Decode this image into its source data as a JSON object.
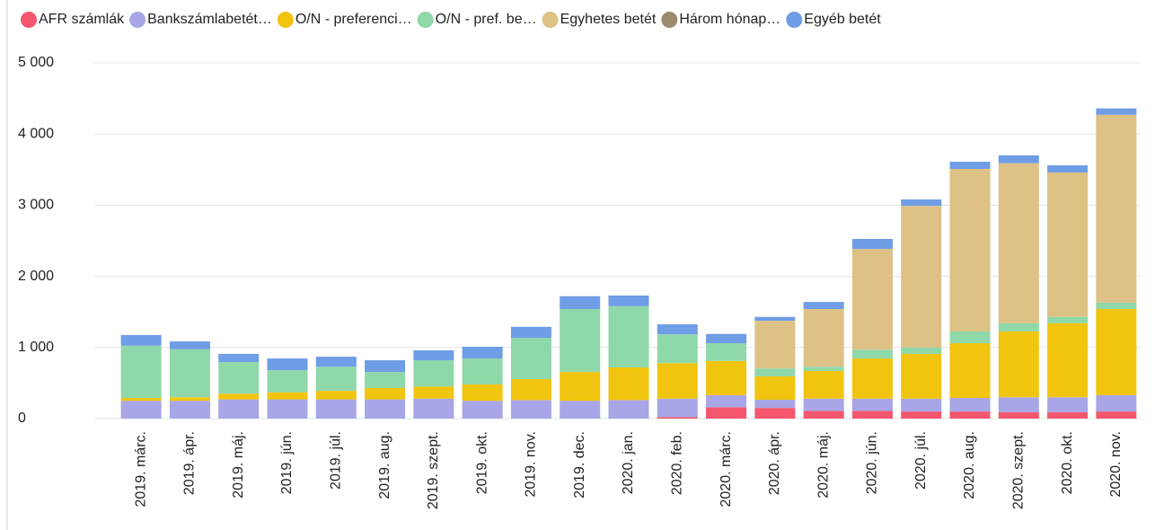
{
  "chart_data": {
    "type": "stacked_bar",
    "categories": [
      "2019. márc.",
      "2019. ápr.",
      "2019. máj.",
      "2019. jún.",
      "2019. júl.",
      "2019. aug.",
      "2019. szept.",
      "2019. okt.",
      "2019. nov.",
      "2019. dec.",
      "2020. jan.",
      "2020. feb.",
      "2020. márc.",
      "2020. ápr.",
      "2020. máj.",
      "2020. jún.",
      "2020. júl.",
      "2020. aug.",
      "2020. szept.",
      "2020. okt.",
      "2020. nov."
    ],
    "series": [
      {
        "name": "AFR számlák",
        "color": "#f4566e",
        "values": [
          0,
          0,
          0,
          0,
          0,
          0,
          0,
          0,
          0,
          0,
          0,
          20,
          160,
          150,
          110,
          110,
          100,
          100,
          90,
          90,
          100
        ]
      },
      {
        "name": "Bankszámlabetét…",
        "color": "#a8a6e6",
        "values": [
          250,
          250,
          270,
          270,
          270,
          270,
          280,
          250,
          260,
          250,
          260,
          260,
          170,
          115,
          170,
          170,
          180,
          190,
          210,
          210,
          230
        ]
      },
      {
        "name": "O/N - preferenci…",
        "color": "#f1c40f",
        "values": [
          40,
          50,
          80,
          100,
          120,
          160,
          170,
          230,
          295,
          405,
          460,
          500,
          480,
          330,
          390,
          565,
          630,
          770,
          925,
          1040,
          1210
        ]
      },
      {
        "name": "O/N - pref. be…",
        "color": "#8fd8a9",
        "values": [
          735,
          675,
          445,
          310,
          340,
          225,
          370,
          365,
          580,
          885,
          860,
          405,
          250,
          110,
          60,
          125,
          90,
          165,
          115,
          90,
          90
        ]
      },
      {
        "name": "Egyhetes betét",
        "color": "#ddc185",
        "values": [
          0,
          0,
          0,
          0,
          0,
          0,
          0,
          0,
          0,
          0,
          0,
          0,
          0,
          670,
          810,
          1415,
          1990,
          2285,
          2250,
          2030,
          2640
        ]
      },
      {
        "name": "Három hónap…",
        "color": "#9c8b6e",
        "values": [
          0,
          0,
          0,
          0,
          0,
          0,
          0,
          0,
          0,
          0,
          0,
          0,
          0,
          0,
          0,
          0,
          0,
          0,
          0,
          0,
          0
        ]
      },
      {
        "name": "Egyéb betét",
        "color": "#6f9de6",
        "values": [
          150,
          110,
          115,
          165,
          140,
          165,
          140,
          165,
          155,
          180,
          150,
          140,
          130,
          55,
          100,
          140,
          90,
          100,
          110,
          100,
          90
        ]
      }
    ],
    "ylim": [
      0,
      5000
    ],
    "yticks": [
      {
        "value": 0,
        "label": "0"
      },
      {
        "value": 1000,
        "label": "1 000"
      },
      {
        "value": 2000,
        "label": "2 000"
      },
      {
        "value": 3000,
        "label": "3 000"
      },
      {
        "value": 4000,
        "label": "4 000"
      },
      {
        "value": 5000,
        "label": "5 000"
      }
    ],
    "grid": true
  }
}
